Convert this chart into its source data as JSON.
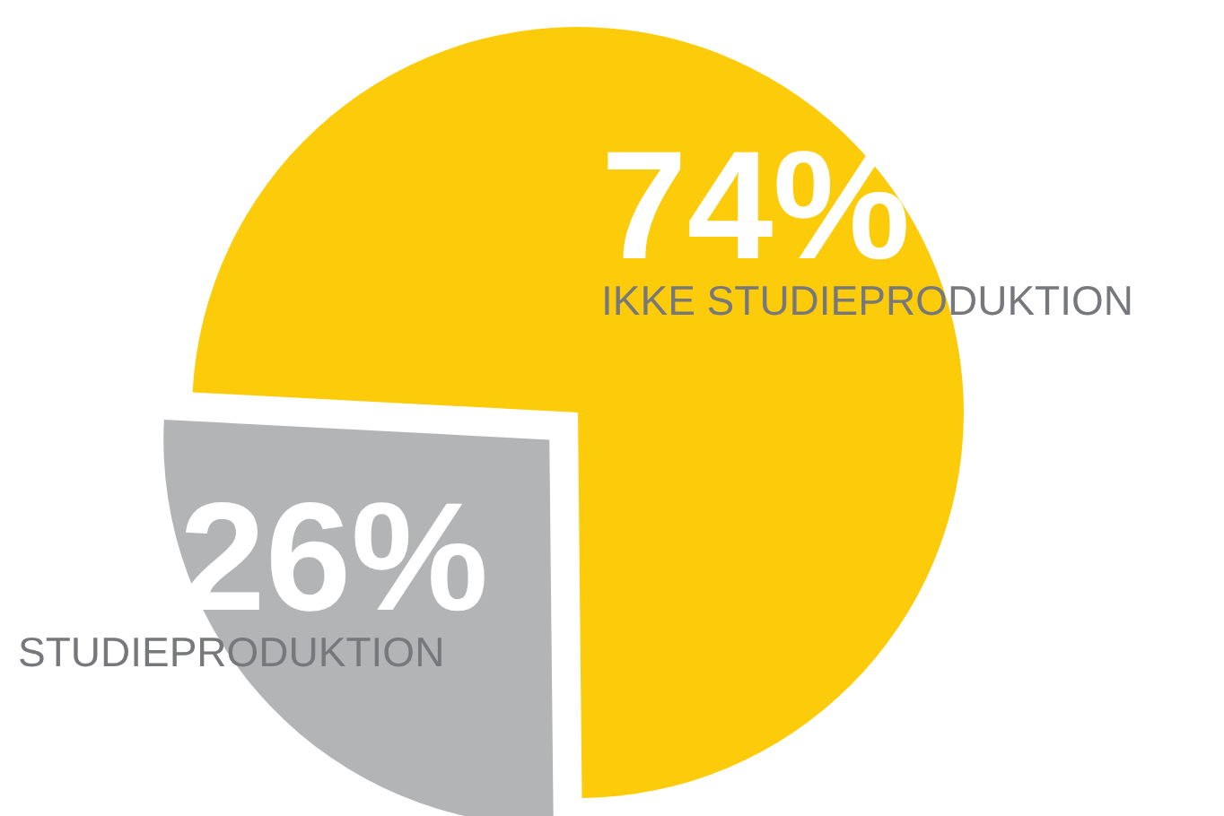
{
  "chart_data": {
    "type": "pie",
    "categories": [
      "IKKE STUDIEPRODUKTION",
      "STUDIEPRODUKTION"
    ],
    "values": [
      74,
      26
    ],
    "colors": [
      "#fccc0a",
      "#b3b4b6"
    ],
    "value_labels": [
      "74%",
      "26%"
    ]
  }
}
